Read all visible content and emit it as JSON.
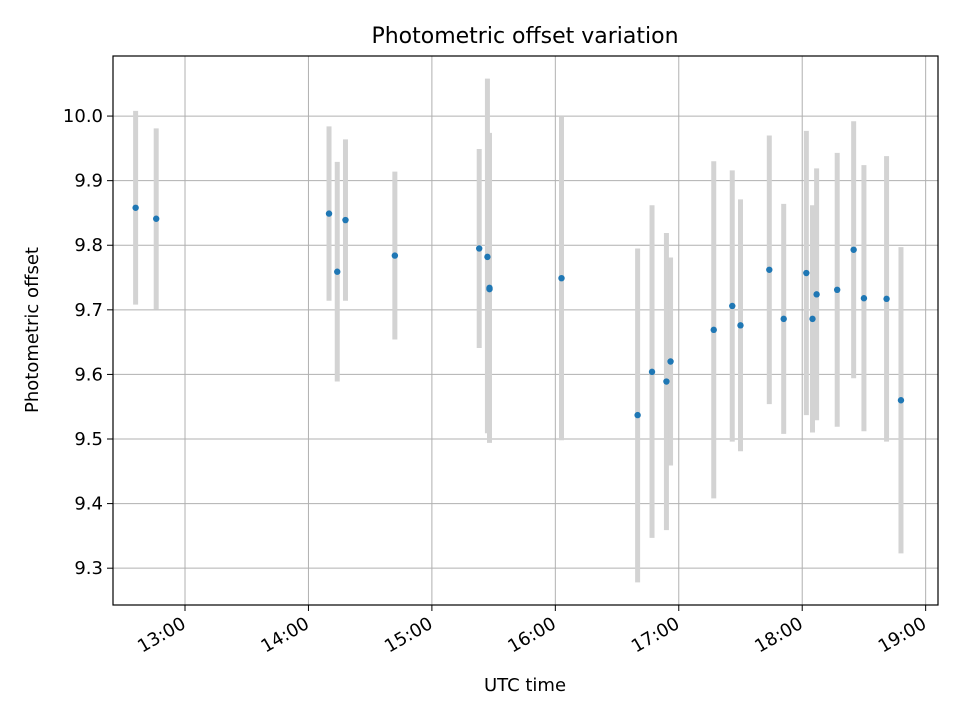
{
  "chart_data": {
    "type": "scatter",
    "title": "Photometric offset variation",
    "xlabel": "UTC time",
    "ylabel": "Photometric offset",
    "x_tick_labels": [
      "13:00",
      "14:00",
      "15:00",
      "16:00",
      "17:00",
      "18:00",
      "19:00"
    ],
    "y_tick_labels": [
      "9.3",
      "9.4",
      "9.5",
      "9.6",
      "9.7",
      "9.8",
      "9.9",
      "10.0"
    ],
    "xlim": [
      "12:25",
      "19:06"
    ],
    "ylim": [
      9.243,
      10.093
    ],
    "grid": true,
    "marker_color": "#1f77b4",
    "errorbar_color": "#d3d3d3",
    "points": [
      {
        "x": "12:36",
        "y": 9.858,
        "ylow": 9.708,
        "yhigh": 10.008
      },
      {
        "x": "12:46",
        "y": 9.841,
        "ylow": 9.701,
        "yhigh": 9.981
      },
      {
        "x": "14:10",
        "y": 9.849,
        "ylow": 9.714,
        "yhigh": 9.984
      },
      {
        "x": "14:14",
        "y": 9.759,
        "ylow": 9.589,
        "yhigh": 9.929
      },
      {
        "x": "14:18",
        "y": 9.839,
        "ylow": 9.714,
        "yhigh": 9.964
      },
      {
        "x": "14:42",
        "y": 9.784,
        "ylow": 9.654,
        "yhigh": 9.914
      },
      {
        "x": "15:23",
        "y": 9.795,
        "ylow": 9.641,
        "yhigh": 9.949
      },
      {
        "x": "15:27",
        "y": 9.782,
        "ylow": 9.509,
        "yhigh": 10.058
      },
      {
        "x": "15:28",
        "y": 9.734,
        "ylow": 9.494,
        "yhigh": 9.974
      },
      {
        "x": "15:28",
        "y": 9.732,
        "ylow": 9.512,
        "yhigh": 9.952
      },
      {
        "x": "16:03",
        "y": 9.749,
        "ylow": 9.498,
        "yhigh": 10.0
      },
      {
        "x": "16:40",
        "y": 9.537,
        "ylow": 9.278,
        "yhigh": 9.795
      },
      {
        "x": "16:47",
        "y": 9.604,
        "ylow": 9.347,
        "yhigh": 9.862
      },
      {
        "x": "16:54",
        "y": 9.589,
        "ylow": 9.359,
        "yhigh": 9.819
      },
      {
        "x": "16:56",
        "y": 9.62,
        "ylow": 9.459,
        "yhigh": 9.781
      },
      {
        "x": "17:17",
        "y": 9.669,
        "ylow": 9.408,
        "yhigh": 9.93
      },
      {
        "x": "17:26",
        "y": 9.706,
        "ylow": 9.496,
        "yhigh": 9.916
      },
      {
        "x": "17:30",
        "y": 9.676,
        "ylow": 9.481,
        "yhigh": 9.871
      },
      {
        "x": "17:44",
        "y": 9.762,
        "ylow": 9.554,
        "yhigh": 9.97
      },
      {
        "x": "17:51",
        "y": 9.686,
        "ylow": 9.508,
        "yhigh": 9.864
      },
      {
        "x": "18:02",
        "y": 9.757,
        "ylow": 9.537,
        "yhigh": 9.977
      },
      {
        "x": "18:05",
        "y": 9.686,
        "ylow": 9.51,
        "yhigh": 9.862
      },
      {
        "x": "18:07",
        "y": 9.724,
        "ylow": 9.529,
        "yhigh": 9.919
      },
      {
        "x": "18:17",
        "y": 9.731,
        "ylow": 9.519,
        "yhigh": 9.943
      },
      {
        "x": "18:25",
        "y": 9.793,
        "ylow": 9.594,
        "yhigh": 9.992
      },
      {
        "x": "18:30",
        "y": 9.718,
        "ylow": 9.512,
        "yhigh": 9.924
      },
      {
        "x": "18:41",
        "y": 9.717,
        "ylow": 9.496,
        "yhigh": 9.938
      },
      {
        "x": "18:48",
        "y": 9.56,
        "ylow": 9.323,
        "yhigh": 9.797
      }
    ]
  }
}
